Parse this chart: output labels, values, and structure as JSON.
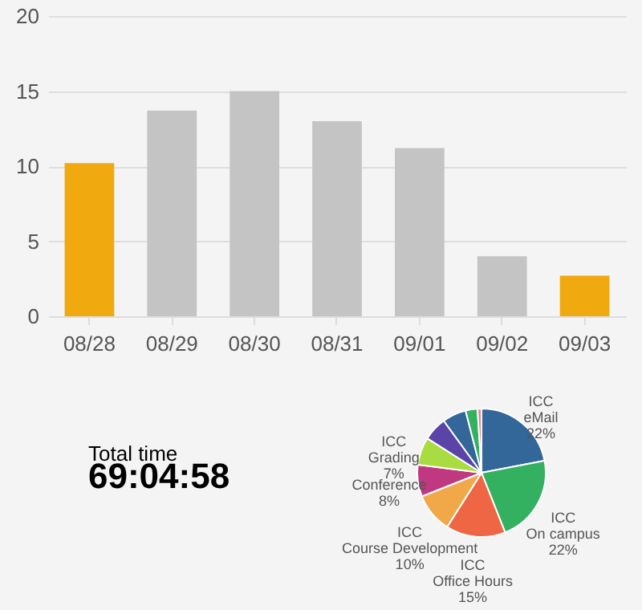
{
  "chart_data": [
    {
      "type": "bar",
      "categories": [
        "08/28",
        "08/29",
        "08/30",
        "08/31",
        "09/01",
        "09/02",
        "09/03"
      ],
      "values": [
        10.2,
        13.7,
        15.0,
        13.0,
        11.2,
        4.0,
        2.7
      ],
      "colors": [
        "#f0aa10",
        "#c4c4c4",
        "#c4c4c4",
        "#c4c4c4",
        "#c4c4c4",
        "#c4c4c4",
        "#f0aa10"
      ],
      "ylim": [
        0,
        20
      ],
      "yticks": [
        0,
        5,
        10,
        15,
        20
      ],
      "grid": "y"
    },
    {
      "type": "other",
      "title": "Total time",
      "subtitle": "69:04:58"
    },
    {
      "type": "pie",
      "categories": [
        "ICC eMail",
        "ICC On campus",
        "ICC Office Hours",
        "ICC Course Development",
        "Conference",
        "ICC Grading",
        null,
        null,
        null,
        null
      ],
      "values": [
        22,
        22,
        15,
        10,
        8,
        7,
        6,
        6,
        3,
        1
      ],
      "colors": [
        "#336699",
        "#33b060",
        "#ee6644",
        "#f0a848",
        "#c03880",
        "#a8dc40",
        "#5a44a8",
        "#336699",
        "#33b060",
        "#f08080"
      ],
      "value_labels": [
        "22%",
        "22%",
        "15%",
        "10%",
        "8%",
        "7%",
        null,
        null,
        null,
        null
      ]
    }
  ]
}
